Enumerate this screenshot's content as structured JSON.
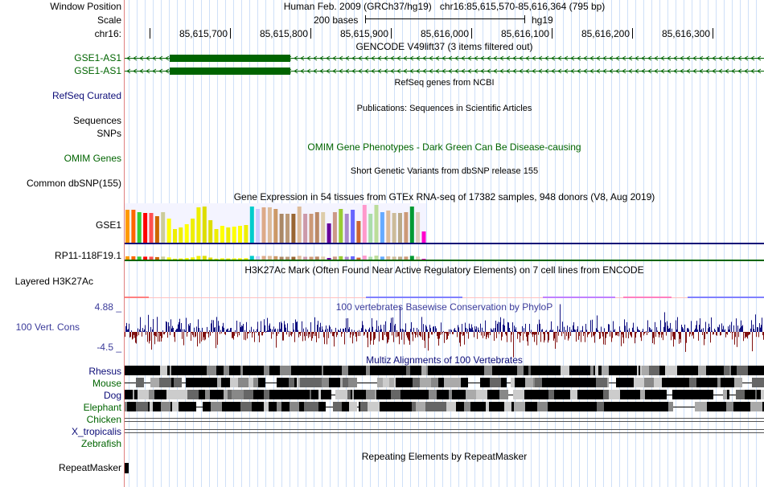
{
  "header": {
    "window_position_label": "Window Position",
    "scale_label": "Scale",
    "chrom_label": "chr16:",
    "assembly_title": "Human Feb. 2009 (GRCh37/hg19)",
    "position_text": "chr16:85,615,570-85,616,364 (795 bp)",
    "scale_text": "200 bases",
    "db_text": "hg19",
    "ruler_ticks": [
      "85,615,700",
      "85,615,800",
      "85,615,900",
      "85,616,000",
      "85,616,100",
      "85,616,200",
      "85,616,300"
    ]
  },
  "tracks": {
    "gencode": {
      "title": "GENCODE V49lift37 (3 items filtered out)",
      "items": [
        "GSE1-AS1",
        "GSE1-AS1"
      ],
      "color": "#006400"
    },
    "refseq": {
      "title": "RefSeq genes from NCBI",
      "label": "RefSeq Curated",
      "color": "#0c0c78"
    },
    "publications": {
      "title": "Publications: Sequences in Scientific Articles",
      "label_line1": "Sequences",
      "label_line2": "SNPs"
    },
    "omim": {
      "title": "OMIM Gene Phenotypes - Dark Green Can Be Disease-causing",
      "label": "OMIM Genes",
      "color": "#006400"
    },
    "dbsnp": {
      "title": "Short Genetic Variants from dbSNP release 155",
      "label": "Common dbSNP(155)"
    },
    "gtex": {
      "title": "Gene Expression in 54 tissues from GTEx RNA-seq of 17382 samples, 948 donors (V8, Aug 2019)",
      "gene1": "GSE1",
      "gene2": "RP11-118F19.1",
      "bar_colors": [
        "#FF9900",
        "#FF6600",
        "#33CC33",
        "#FF0000",
        "#FF5050",
        "#CC6600",
        "#CCCC99",
        "#FFFF00",
        "#EEEE00",
        "#EEEE00",
        "#FFFF00",
        "#EEEE00",
        "#EEEE00",
        "#DDDD00",
        "#DDDD00",
        "#EEEE00",
        "#FFFF00",
        "#EEEE00",
        "#FFFF00",
        "#FFFF00",
        "#EEEE00",
        "#00CCCC",
        "#CCCCFF",
        "#DDAA88",
        "#DDBB99",
        "#CC9966",
        "#AA8866",
        "#BB9977",
        "#996633",
        "#DDBB99",
        "#CC99AA",
        "#CC9977",
        "#BB8866",
        "#DDCCAA",
        "#660099",
        "#CC9988",
        "#99CC33",
        "#AA88CC",
        "#6666FF",
        "#CC6633",
        "#FF99CC",
        "#AADDAA",
        "#BBDD99",
        "#66AAFF",
        "#DDBB99",
        "#CCBB99",
        "#BBAA88",
        "#CC9977",
        "#009933",
        "#DDCCBB",
        "#FF00CC"
      ],
      "bar_values": [
        41,
        41,
        38,
        37,
        37,
        33,
        38,
        30,
        17,
        19,
        23,
        30,
        44,
        45,
        28,
        17,
        21,
        19,
        20,
        21,
        22,
        45,
        42,
        44,
        44,
        42,
        36,
        36,
        36,
        45,
        36,
        36,
        38,
        38,
        24,
        38,
        42,
        36,
        41,
        27,
        47,
        36,
        47,
        38,
        40,
        37,
        37,
        38,
        45,
        38,
        14
      ]
    },
    "h3k27ac": {
      "title": "H3K27Ac Mark (Often Found Near Active Regulatory Elements) on 7 cell lines from ENCODE",
      "label": "Layered H3K27Ac"
    },
    "phylop": {
      "title": "100 vertebrates Basewise Conservation by PhyloP",
      "label": "100 Vert. Cons",
      "max_label": "4.88 _",
      "min_label": "-4.5 _",
      "ymax": 4.88,
      "ymin": -4.5,
      "pos_color": "#101080",
      "neg_color": "#801010",
      "label_color": "#3b3b9a"
    },
    "multiz": {
      "title": "Multiz Alignments of 100 Vertebrates",
      "species": [
        "Rhesus",
        "Mouse",
        "Dog",
        "Elephant",
        "Chicken",
        "X_tropicalis",
        "Zebrafish"
      ],
      "species_colors": [
        "#0c0c78",
        "#006400",
        "#0c0c78",
        "#006400",
        "#006400",
        "#0c0c78",
        "#006400"
      ]
    },
    "repeatmasker": {
      "title": "Repeating Elements by RepeatMasker",
      "label": "RepeatMasker"
    }
  },
  "colors": {
    "grid": "#cfe0f8",
    "divider": "#e08080",
    "navy": "#0c0c78",
    "green": "#006400",
    "black": "#000000"
  }
}
